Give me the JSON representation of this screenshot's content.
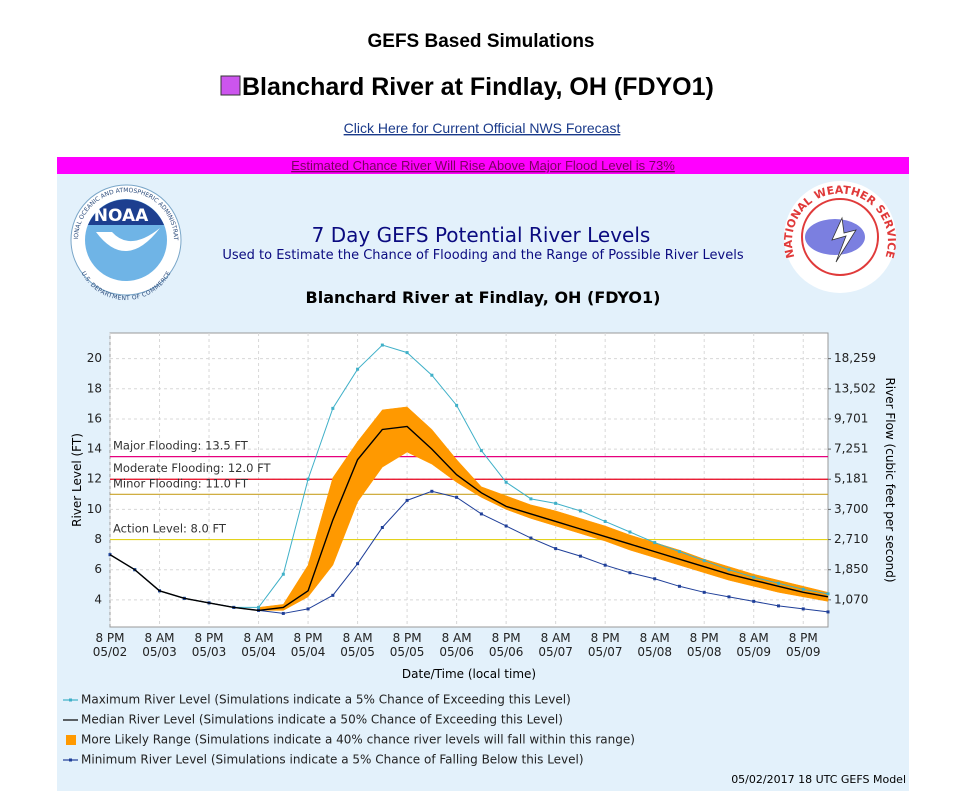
{
  "header": {
    "title": "GEFS Based Simulations",
    "location": "Blanchard River at Findlay, OH (FDYO1)",
    "link": "Click Here for Current Official NWS Forecast",
    "banner": "Estimated Chance River Will Rise Above Major Flood Level is 73%"
  },
  "logos": {
    "noaa": {
      "text": "NOAA",
      "ring_top": "NATIONAL OCEANIC AND ATMOSPHERIC ADMINISTRATION",
      "ring_bottom": "U.S. DEPARTMENT OF COMMERCE"
    },
    "nws": {
      "ring": "NATIONAL WEATHER SERVICE"
    }
  },
  "footer": "05/02/2017 18 UTC GEFS Model",
  "chart_data": {
    "type": "line",
    "title": "7 Day GEFS Potential River Levels",
    "subtitle": "Used to Estimate the Chance of Flooding and the Range of Possible River Levels",
    "station": "Blanchard River at Findlay, OH (FDYO1)",
    "ylabel": "River Level (FT)",
    "y2label": "River Flow (cubic feet per second)",
    "xlabel": "Date/Time (local time)",
    "grid": true,
    "x": [
      "05/02 20:00",
      "05/03 02:00",
      "05/03 08:00",
      "05/03 14:00",
      "05/03 20:00",
      "05/04 02:00",
      "05/04 08:00",
      "05/04 14:00",
      "05/04 20:00",
      "05/05 02:00",
      "05/05 08:00",
      "05/05 14:00",
      "05/05 20:00",
      "05/06 02:00",
      "05/06 08:00",
      "05/06 14:00",
      "05/06 20:00",
      "05/07 02:00",
      "05/07 08:00",
      "05/07 14:00",
      "05/07 20:00",
      "05/08 02:00",
      "05/08 08:00",
      "05/08 14:00",
      "05/08 20:00",
      "05/09 02:00",
      "05/09 08:00",
      "05/09 14:00",
      "05/09 20:00",
      "05/10 02:00"
    ],
    "xlim": [
      "05/02 20:00",
      "05/10 02:00"
    ],
    "xticks": [
      {
        "value": "05/02 20:00",
        "label": "8 PM\n05/02"
      },
      {
        "value": "05/03 08:00",
        "label": "8 AM\n05/03"
      },
      {
        "value": "05/03 20:00",
        "label": "8 PM\n05/03"
      },
      {
        "value": "05/04 08:00",
        "label": "8 AM\n05/04"
      },
      {
        "value": "05/04 20:00",
        "label": "8 PM\n05/04"
      },
      {
        "value": "05/05 08:00",
        "label": "8 AM\n05/05"
      },
      {
        "value": "05/05 20:00",
        "label": "8 PM\n05/05"
      },
      {
        "value": "05/06 08:00",
        "label": "8 AM\n05/06"
      },
      {
        "value": "05/06 20:00",
        "label": "8 PM\n05/06"
      },
      {
        "value": "05/07 08:00",
        "label": "8 AM\n05/07"
      },
      {
        "value": "05/07 20:00",
        "label": "8 PM\n05/07"
      },
      {
        "value": "05/08 08:00",
        "label": "8 AM\n05/08"
      },
      {
        "value": "05/08 20:00",
        "label": "8 PM\n05/08"
      },
      {
        "value": "05/09 08:00",
        "label": "8 AM\n05/09"
      },
      {
        "value": "05/09 20:00",
        "label": "8 PM\n05/09"
      }
    ],
    "ylim": [
      2.2,
      21.7
    ],
    "yticks": [
      4,
      6,
      8,
      10,
      12,
      14,
      16,
      18,
      20
    ],
    "y2ticks": [
      {
        "value": 1070,
        "label": "1,070"
      },
      {
        "value": 1850,
        "label": "1,850"
      },
      {
        "value": 2710,
        "label": "2,710"
      },
      {
        "value": 3700,
        "label": "3,700"
      },
      {
        "value": 5181,
        "label": "5,181"
      },
      {
        "value": 7251,
        "label": "7,251"
      },
      {
        "value": 9701,
        "label": "9,701"
      },
      {
        "value": 13502,
        "label": "13,502"
      },
      {
        "value": 18259,
        "label": "18,259"
      }
    ],
    "thresholds": [
      {
        "value": 13.5,
        "label": "Major Flooding: 13.5 FT",
        "color": "#e6007e"
      },
      {
        "value": 12.0,
        "label": "Moderate Flooding: 12.0 FT",
        "color": "#e8001c"
      },
      {
        "value": 11.0,
        "label": "Minor Flooding: 11.0 FT",
        "color": "#c9a227"
      },
      {
        "value": 8.0,
        "label": "Action Level: 8.0 FT",
        "color": "#e3d21c"
      }
    ],
    "series": [
      {
        "name": "Maximum River Level (Simulations indicate a 5% Chance of Exceeding this Level)",
        "color": "#3fb0c8",
        "markers": true,
        "values": [
          7.0,
          6.0,
          4.6,
          4.1,
          3.8,
          3.5,
          3.5,
          5.7,
          12.0,
          16.7,
          19.3,
          20.9,
          20.4,
          18.9,
          16.9,
          13.9,
          11.8,
          10.7,
          10.4,
          9.9,
          9.2,
          8.5,
          7.8,
          7.2,
          6.6,
          6.0,
          5.5,
          5.1,
          4.7,
          4.4
        ]
      },
      {
        "name": "Median River Level (Simulations indicate a 50% Chance of Exceeding this Level)",
        "color": "#000000",
        "markers": false,
        "values": [
          7.0,
          6.0,
          4.6,
          4.1,
          3.8,
          3.5,
          3.3,
          3.5,
          4.6,
          9.3,
          13.3,
          15.3,
          15.5,
          14.0,
          12.3,
          11.1,
          10.2,
          9.7,
          9.2,
          8.7,
          8.2,
          7.7,
          7.2,
          6.7,
          6.2,
          5.7,
          5.3,
          4.9,
          4.5,
          4.2
        ]
      },
      {
        "name": "More Likely Range (Simulations indicate a 40% chance river levels will fall within this range)",
        "color": "#ff9900",
        "low": [
          null,
          null,
          null,
          null,
          null,
          null,
          3.3,
          3.3,
          4.2,
          6.3,
          10.5,
          12.8,
          13.8,
          13.0,
          11.8,
          10.8,
          10.0,
          9.4,
          8.9,
          8.4,
          7.9,
          7.3,
          6.8,
          6.3,
          5.8,
          5.3,
          4.9,
          4.5,
          4.2,
          3.9
        ],
        "high": [
          null,
          null,
          null,
          null,
          null,
          null,
          3.5,
          3.7,
          6.3,
          12.1,
          14.5,
          16.6,
          16.8,
          15.3,
          13.3,
          11.5,
          10.9,
          10.3,
          9.9,
          9.4,
          8.9,
          8.3,
          7.8,
          7.3,
          6.7,
          6.2,
          5.7,
          5.3,
          4.9,
          4.5
        ]
      },
      {
        "name": "Minimum River Level (Simulations indicate a 5% Chance of Falling Below this Level)",
        "color": "#1f3f99",
        "markers": true,
        "values": [
          7.0,
          6.0,
          4.6,
          4.1,
          3.8,
          3.5,
          3.3,
          3.1,
          3.4,
          4.3,
          6.4,
          8.8,
          10.6,
          11.2,
          10.8,
          9.7,
          8.9,
          8.1,
          7.4,
          6.9,
          6.3,
          5.8,
          5.4,
          4.9,
          4.5,
          4.2,
          3.9,
          3.6,
          3.4,
          3.2
        ]
      }
    ]
  }
}
